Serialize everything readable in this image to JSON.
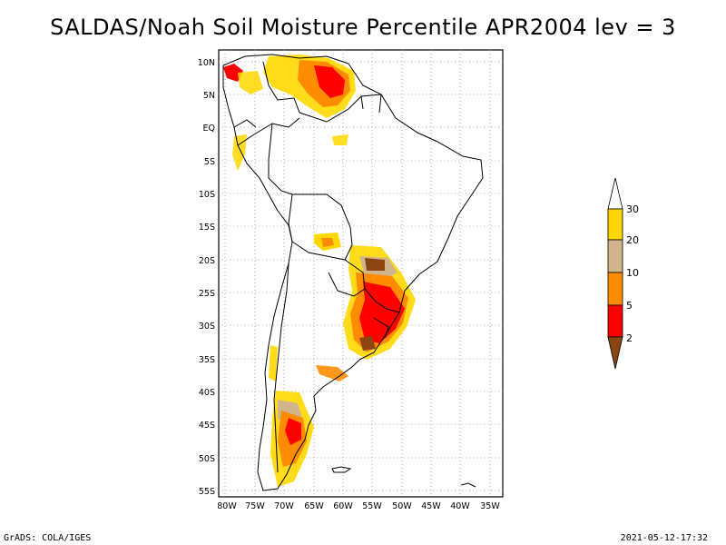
{
  "title": "SALDAS/Noah Soil Moisture Percentile APR2004 lev = 3",
  "footer": {
    "left": "GrADS: COLA/IGES",
    "right": "2021-05-12-17:32"
  },
  "map": {
    "lat_ticks": [
      "10N",
      "5N",
      "EQ",
      "5S",
      "10S",
      "15S",
      "20S",
      "25S",
      "30S",
      "35S",
      "40S",
      "45S",
      "50S",
      "55S"
    ],
    "lon_ticks": [
      "80W",
      "75W",
      "70W",
      "65W",
      "60W",
      "55W",
      "50W",
      "45W",
      "40W",
      "35W"
    ],
    "lon_range": [
      -81,
      -33
    ],
    "lat_range": [
      -56,
      12
    ],
    "grid": true,
    "land_color": "#ffffff",
    "border_color": "#000000"
  },
  "legend": {
    "placement": "right",
    "labels": [
      "30",
      "20",
      "10",
      "5",
      "2"
    ],
    "colors": {
      "above_30": "#ffffff",
      "20_30": "#ffd700",
      "10_20": "#d2b48c",
      "5_10": "#ff8c00",
      "2_5": "#ff0000",
      "below_2": "#8b4513"
    }
  }
}
